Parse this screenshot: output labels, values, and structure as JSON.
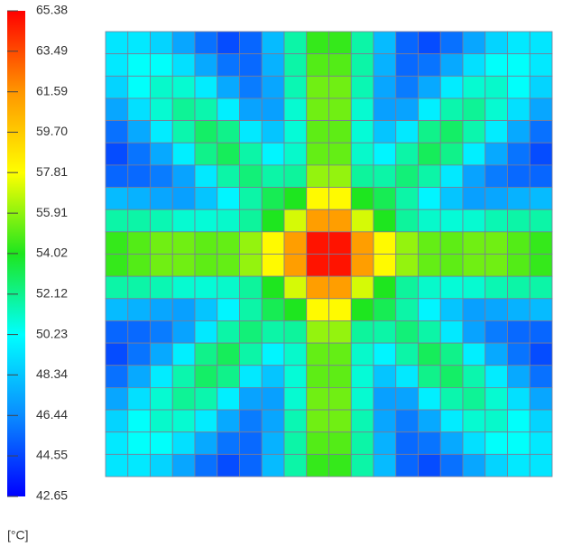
{
  "chart_data": {
    "type": "heatmap",
    "zlim": [
      42.65,
      65.38
    ],
    "zticks": [
      65.38,
      63.49,
      61.59,
      {
        "value": 59.7,
        "label": "59.70"
      },
      57.81,
      55.91,
      54.02,
      52.12,
      50.23,
      48.34,
      46.44,
      44.55,
      42.65
    ],
    "colorbar_label": "[°C]",
    "colormap": [
      "#0000ff",
      "#0a8cff",
      "#00ffff",
      "#1ee61e",
      "#ffff00",
      "#ff9600",
      "#ff0000"
    ],
    "grid": true,
    "z": [
      [
        49.4,
        49.5,
        48.8,
        47.3,
        45.7,
        44.7,
        45.4,
        48.0,
        51.7,
        54.4,
        54.4,
        51.7,
        48.0,
        45.4,
        44.7,
        45.7,
        47.3,
        48.8,
        49.5,
        49.4
      ],
      [
        49.5,
        50.3,
        50.3,
        49.2,
        47.4,
        45.8,
        45.5,
        47.7,
        51.7,
        54.9,
        54.9,
        51.7,
        47.7,
        45.5,
        45.8,
        47.4,
        49.2,
        50.3,
        50.3,
        49.5
      ],
      [
        48.8,
        50.3,
        51.1,
        51.0,
        49.6,
        47.4,
        46.0,
        47.3,
        51.5,
        55.4,
        55.4,
        51.5,
        47.3,
        46.0,
        47.4,
        49.6,
        51.0,
        51.1,
        50.3,
        48.8
      ],
      [
        47.3,
        49.2,
        51.0,
        52.0,
        51.6,
        49.7,
        47.2,
        47.1,
        51.0,
        55.4,
        55.4,
        51.0,
        47.1,
        47.2,
        49.7,
        51.6,
        52.0,
        51.0,
        49.2,
        47.3
      ],
      [
        45.7,
        47.4,
        49.6,
        51.6,
        52.8,
        52.2,
        49.5,
        48.3,
        50.9,
        55.1,
        55.1,
        50.9,
        48.3,
        49.5,
        52.2,
        52.8,
        51.6,
        49.6,
        47.4,
        45.7
      ],
      [
        44.7,
        45.8,
        47.4,
        49.7,
        52.2,
        53.0,
        51.7,
        49.9,
        51.1,
        55.2,
        55.2,
        51.1,
        49.9,
        51.7,
        53.0,
        52.2,
        49.7,
        47.4,
        45.8,
        44.7
      ],
      [
        45.4,
        45.5,
        46.0,
        47.2,
        49.5,
        51.7,
        52.5,
        51.7,
        51.9,
        56.0,
        56.0,
        51.9,
        51.7,
        52.5,
        51.7,
        49.5,
        47.2,
        46.0,
        45.5,
        45.4
      ],
      [
        48.0,
        47.7,
        47.3,
        47.1,
        48.3,
        49.9,
        51.7,
        53.1,
        54.0,
        58.0,
        58.0,
        54.0,
        53.1,
        51.7,
        49.9,
        48.3,
        47.1,
        47.3,
        47.7,
        48.0
      ],
      [
        51.7,
        51.7,
        51.5,
        51.0,
        50.9,
        51.1,
        51.9,
        54.0,
        57.1,
        61.3,
        61.3,
        57.1,
        54.0,
        51.9,
        51.1,
        50.9,
        51.0,
        51.5,
        51.7,
        51.7
      ],
      [
        54.4,
        54.9,
        55.4,
        55.4,
        55.1,
        55.2,
        56.0,
        58.0,
        61.3,
        64.9,
        64.9,
        61.3,
        58.0,
        56.0,
        55.2,
        55.1,
        55.4,
        55.4,
        54.9,
        54.4
      ],
      [
        54.4,
        54.9,
        55.4,
        55.4,
        55.1,
        55.2,
        56.0,
        58.0,
        61.3,
        64.9,
        64.9,
        61.3,
        58.0,
        56.0,
        55.2,
        55.1,
        55.4,
        55.4,
        54.9,
        54.4
      ],
      [
        51.7,
        51.7,
        51.5,
        51.0,
        50.9,
        51.1,
        51.9,
        54.0,
        57.1,
        61.3,
        61.3,
        57.1,
        54.0,
        51.9,
        51.1,
        50.9,
        51.0,
        51.5,
        51.7,
        51.7
      ],
      [
        48.0,
        47.7,
        47.3,
        47.1,
        48.3,
        49.9,
        51.7,
        53.1,
        54.0,
        58.0,
        58.0,
        54.0,
        53.1,
        51.7,
        49.9,
        48.3,
        47.1,
        47.3,
        47.7,
        48.0
      ],
      [
        45.4,
        45.5,
        46.0,
        47.2,
        49.5,
        51.7,
        52.5,
        51.7,
        51.9,
        56.0,
        56.0,
        51.9,
        51.7,
        52.5,
        51.7,
        49.5,
        47.2,
        46.0,
        45.5,
        45.4
      ],
      [
        44.7,
        45.8,
        47.4,
        49.7,
        52.2,
        53.0,
        51.7,
        49.9,
        51.1,
        55.2,
        55.2,
        51.1,
        49.9,
        51.7,
        53.0,
        52.2,
        49.7,
        47.4,
        45.8,
        44.7
      ],
      [
        45.7,
        47.4,
        49.6,
        51.6,
        52.8,
        52.2,
        49.5,
        48.3,
        50.9,
        55.1,
        55.1,
        50.9,
        48.3,
        49.5,
        52.2,
        52.8,
        51.6,
        49.6,
        47.4,
        45.7
      ],
      [
        47.3,
        49.2,
        51.0,
        52.0,
        51.6,
        49.7,
        47.2,
        47.1,
        51.0,
        55.4,
        55.4,
        51.0,
        47.1,
        47.2,
        49.7,
        51.6,
        52.0,
        51.0,
        49.2,
        47.3
      ],
      [
        48.8,
        50.3,
        51.1,
        51.0,
        49.6,
        47.4,
        46.0,
        47.3,
        51.5,
        55.4,
        55.4,
        51.5,
        47.3,
        46.0,
        47.4,
        49.6,
        51.0,
        51.1,
        50.3,
        48.8
      ],
      [
        49.5,
        50.3,
        50.3,
        49.2,
        47.4,
        45.8,
        45.5,
        47.7,
        51.7,
        54.9,
        54.9,
        51.7,
        47.7,
        45.5,
        45.8,
        47.4,
        49.2,
        50.3,
        50.3,
        49.5
      ],
      [
        49.4,
        49.5,
        48.8,
        47.3,
        45.7,
        44.7,
        45.4,
        48.0,
        51.7,
        54.4,
        54.4,
        51.7,
        48.0,
        45.4,
        44.7,
        45.7,
        47.3,
        48.8,
        49.5,
        49.4
      ]
    ]
  }
}
